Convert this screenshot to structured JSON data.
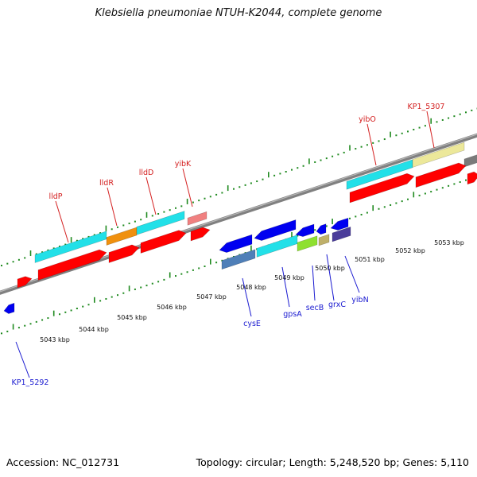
{
  "title": "Klebsiella pneumoniae NTUH-K2044, complete genome",
  "footer": {
    "accession": "Accession: NC_012731",
    "summary": "Topology: circular; Length: 5,248,520 bp; Genes: 5,110"
  },
  "colors": {
    "backbone": "#808080",
    "tick": "#1f8a1f",
    "upper_label": "#d42020",
    "lower_label": "#1a1ad0",
    "cds": "#ff0000",
    "cyan": "#22e0e8",
    "orange": "#f0900e",
    "pink": "#f08080",
    "khaki": "#ece89a",
    "gray": "#7a7a7a",
    "steelblue": "#4f7fb8",
    "lime": "#8ee030",
    "tan": "#bfb06a",
    "slateblue": "#4a3c9a",
    "blue": "#0000f0"
  },
  "scale_labels": [
    "5043 kbp",
    "5044 kbp",
    "5045 kbp",
    "5046 kbp",
    "5047 kbp",
    "5048 kbp",
    "5049 kbp",
    "5050 kbp",
    "5051 kbp",
    "5052 kbp",
    "5053 kbp"
  ],
  "upper_gene_labels": [
    "lldP",
    "lldR",
    "lldD",
    "yibK",
    "yibO",
    "KP1_5307"
  ],
  "lower_gene_labels": [
    "KP1_5292",
    "cysE",
    "gpsA",
    "secB",
    "grxC",
    "yibN"
  ]
}
